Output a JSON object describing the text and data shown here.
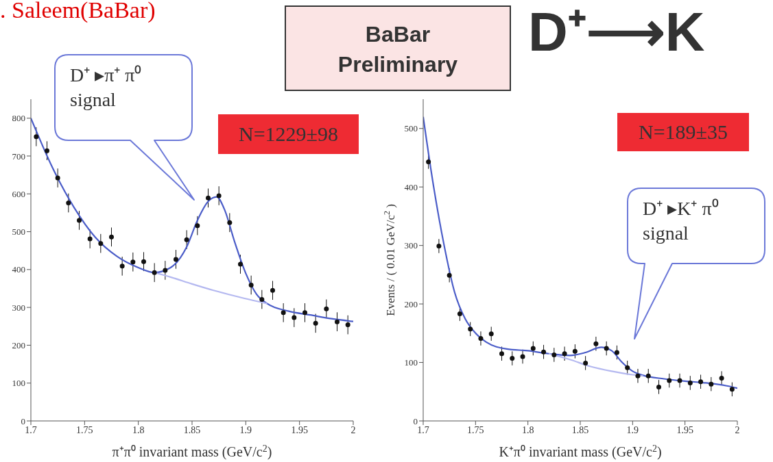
{
  "chart_data": [
    {
      "type": "scatter",
      "xlabel": "π⁺π⁰ invariant mass (GeV/c$^{2}$)",
      "xlim": [
        1.7,
        2
      ],
      "xticks": [
        1.7,
        1.75,
        1.8,
        1.85,
        1.9,
        1.95,
        2
      ],
      "ylim": [
        0,
        850
      ],
      "yticks": [
        0,
        100,
        200,
        300,
        400,
        500,
        600,
        700,
        800
      ],
      "line_style": "solid",
      "annotations": [
        ". Saleem(BaBar)",
        "BaBar Preliminary",
        "N=1229±98",
        "D⁺ ▸π⁺ π⁰ signal"
      ],
      "series": [
        {
          "type": "scatter",
          "color": "#111111",
          "x": [
            1.705,
            1.715,
            1.725,
            1.735,
            1.745,
            1.755,
            1.765,
            1.775,
            1.785,
            1.795,
            1.805,
            1.815,
            1.825,
            1.835,
            1.845,
            1.855,
            1.865,
            1.875,
            1.885,
            1.895,
            1.905,
            1.915,
            1.925,
            1.935,
            1.945,
            1.955,
            1.965,
            1.975,
            1.985,
            1.995
          ],
          "values": [
            751,
            714,
            642,
            576,
            530,
            481,
            469,
            486,
            409,
            420,
            421,
            392,
            398,
            427,
            479,
            516,
            589,
            595,
            524,
            414,
            359,
            321,
            345,
            286,
            273,
            286,
            258,
            296,
            262,
            254
          ],
          "marker": "circle",
          "errors": [
            25,
            25,
            25,
            25,
            25,
            25,
            25,
            25,
            25,
            25,
            25,
            25,
            25,
            25,
            25,
            25,
            25,
            25,
            25,
            25,
            25,
            25,
            25,
            25,
            25,
            25,
            25,
            25,
            25,
            25
          ]
        },
        {
          "type": "line",
          "color": "#4a5cc8",
          "x": [
            1.7,
            1.72,
            1.74,
            1.76,
            1.78,
            1.8,
            1.815,
            1.83,
            1.845,
            1.855,
            1.865,
            1.873,
            1.88,
            1.89,
            1.9,
            1.91,
            1.92,
            1.94,
            1.96,
            1.98,
            2
          ],
          "values": [
            800,
            670,
            565,
            485,
            435,
            405,
            392,
            405,
            460,
            530,
            580,
            592,
            560,
            470,
            390,
            335,
            310,
            290,
            280,
            270,
            263
          ]
        },
        {
          "type": "line",
          "color": "#b4b8f0",
          "x": [
            1.815,
            1.83,
            1.85,
            1.87,
            1.89,
            1.92
          ],
          "values": [
            392,
            380,
            362,
            345,
            330,
            310
          ]
        }
      ]
    },
    {
      "type": "scatter",
      "xlabel": "K⁺π⁰ invariant mass (GeV/c$^{2}$)",
      "ylabel": "Events / ( 0.01 GeV/c$^{2}$ )",
      "xlim": [
        1.7,
        2
      ],
      "xticks": [
        1.7,
        1.75,
        1.8,
        1.85,
        1.9,
        1.95,
        2
      ],
      "ylim": [
        0,
        550
      ],
      "yticks": [
        0,
        100,
        200,
        300,
        400,
        500
      ],
      "line_style": "solid",
      "annotations": [
        "N=189±35",
        "D⁺⟶K",
        "D⁺ ▸K⁺ π⁰ signal"
      ],
      "series": [
        {
          "type": "scatter",
          "color": "#111111",
          "x": [
            1.705,
            1.715,
            1.725,
            1.735,
            1.745,
            1.755,
            1.765,
            1.775,
            1.785,
            1.795,
            1.805,
            1.815,
            1.825,
            1.835,
            1.845,
            1.855,
            1.865,
            1.875,
            1.885,
            1.895,
            1.905,
            1.915,
            1.925,
            1.935,
            1.945,
            1.955,
            1.965,
            1.975,
            1.985,
            1.995
          ],
          "values": [
            443,
            299,
            249,
            183,
            157,
            141,
            149,
            115,
            107,
            110,
            124,
            118,
            113,
            115,
            119,
            99,
            132,
            124,
            117,
            91,
            77,
            77,
            58,
            69,
            69,
            65,
            67,
            63,
            73,
            54
          ],
          "marker": "circle",
          "errors": [
            12,
            12,
            12,
            12,
            12,
            12,
            12,
            12,
            12,
            12,
            12,
            12,
            12,
            12,
            12,
            12,
            12,
            12,
            12,
            12,
            12,
            12,
            12,
            12,
            12,
            12,
            12,
            12,
            12,
            12
          ]
        },
        {
          "type": "line",
          "color": "#4a5cc8",
          "x": [
            1.7,
            1.71,
            1.72,
            1.73,
            1.74,
            1.75,
            1.76,
            1.78,
            1.8,
            1.82,
            1.84,
            1.855,
            1.87,
            1.88,
            1.89,
            1.9,
            1.91,
            1.93,
            1.95,
            1.97,
            1.99,
            2
          ],
          "values": [
            520,
            400,
            300,
            220,
            175,
            150,
            135,
            123,
            120,
            115,
            112,
            117,
            126,
            120,
            100,
            85,
            78,
            72,
            68,
            65,
            60,
            56
          ]
        },
        {
          "type": "line",
          "color": "#b4b8f0",
          "x": [
            1.82,
            1.84,
            1.86,
            1.88,
            1.9,
            1.91
          ],
          "values": [
            115,
            105,
            93,
            85,
            79,
            77
          ]
        }
      ]
    }
  ]
}
